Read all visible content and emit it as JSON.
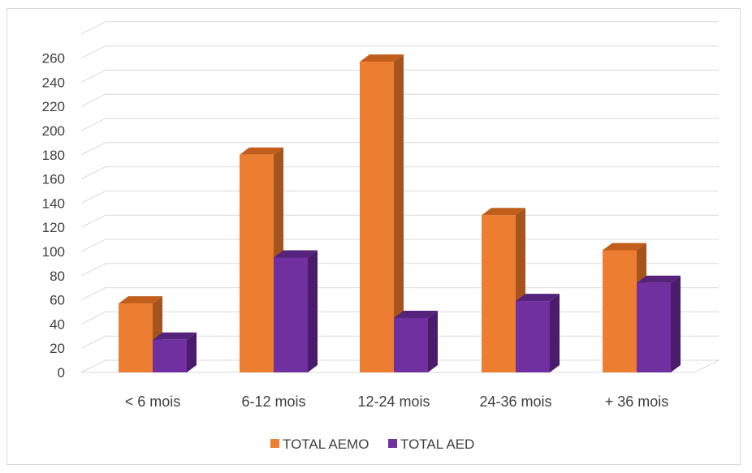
{
  "chart_data": {
    "type": "bar",
    "variant": "3d-clustered-column",
    "categories": [
      "< 6 mois",
      "6-12 mois",
      "12-24 mois",
      "24-36 mois",
      "+ 36 mois"
    ],
    "series": [
      {
        "name": "TOTAL AEMO",
        "values": [
          57,
          180,
          257,
          130,
          101
        ],
        "color": "#ED7D31",
        "side_color": "#A4541C",
        "top_color": "#C25E1C"
      },
      {
        "name": "TOTAL AED",
        "values": [
          27,
          95,
          45,
          59,
          74
        ],
        "color": "#7030A0",
        "side_color": "#4A1C6B",
        "top_color": "#55237C"
      }
    ],
    "yticks": [
      0,
      20,
      40,
      60,
      80,
      100,
      120,
      140,
      160,
      180,
      200,
      220,
      240,
      260
    ],
    "ylim": [
      0,
      280
    ],
    "grid": true,
    "legend_position": "bottom",
    "title": "",
    "xlabel": "",
    "ylabel": ""
  }
}
